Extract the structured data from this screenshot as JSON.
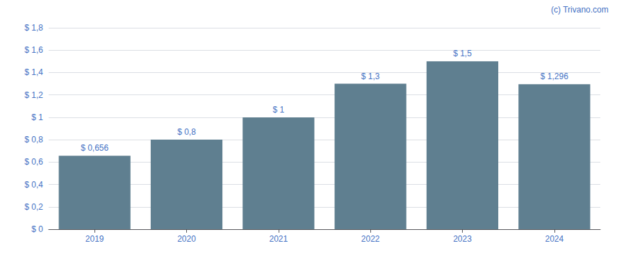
{
  "chart_data": {
    "type": "bar",
    "categories": [
      "2019",
      "2020",
      "2021",
      "2022",
      "2023",
      "2024"
    ],
    "values": [
      0.656,
      0.8,
      1.0,
      1.3,
      1.5,
      1.296
    ],
    "value_labels": [
      "$ 0,656",
      "$ 0,8",
      "$ 1",
      "$ 1,3",
      "$ 1,5",
      "$ 1,296"
    ],
    "data_labels": true,
    "color": "#5f7f90",
    "ylim": [
      0,
      1.8
    ],
    "yticks": [
      {
        "value": 0,
        "label": "$ 0"
      },
      {
        "value": 0.2,
        "label": "$ 0,2"
      },
      {
        "value": 0.4,
        "label": "$ 0,4"
      },
      {
        "value": 0.6,
        "label": "$ 0,6"
      },
      {
        "value": 0.8,
        "label": "$ 0,8"
      },
      {
        "value": 1.0,
        "label": "$ 1"
      },
      {
        "value": 1.2,
        "label": "$ 1,2"
      },
      {
        "value": 1.4,
        "label": "$ 1,4"
      },
      {
        "value": 1.6,
        "label": "$ 1,6"
      },
      {
        "value": 1.8,
        "label": "$ 1,8"
      }
    ],
    "grid": true,
    "annotations": [
      "(c) Trivano.com"
    ]
  }
}
